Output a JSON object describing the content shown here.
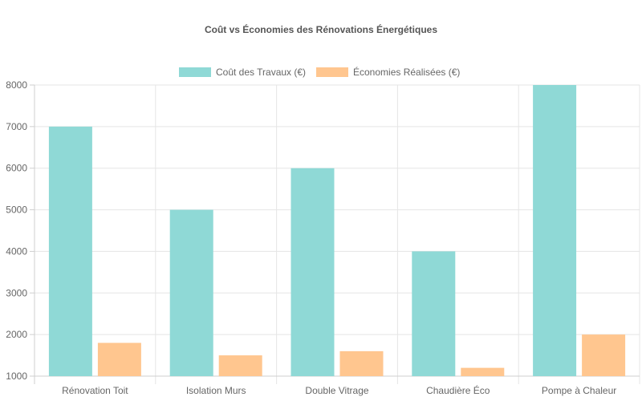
{
  "chart_data": {
    "type": "bar",
    "title": "Coût vs Économies des Rénovations Énergétiques",
    "categories": [
      "Rénovation Toit",
      "Isolation Murs",
      "Double Vitrage",
      "Chaudière Éco",
      "Pompe à Chaleur"
    ],
    "series": [
      {
        "name": "Coût des Travaux (€)",
        "values": [
          7000,
          5000,
          6000,
          4000,
          8000
        ],
        "color": "#8fd9d6"
      },
      {
        "name": "Économies Réalisées (€)",
        "values": [
          1800,
          1500,
          1600,
          1200,
          2000
        ],
        "color": "#ffc68f"
      }
    ],
    "ylim": [
      1000,
      8000
    ],
    "yticks": [
      1000,
      2000,
      3000,
      4000,
      5000,
      6000,
      7000,
      8000
    ],
    "grid": true,
    "legend_position": "top-center"
  }
}
